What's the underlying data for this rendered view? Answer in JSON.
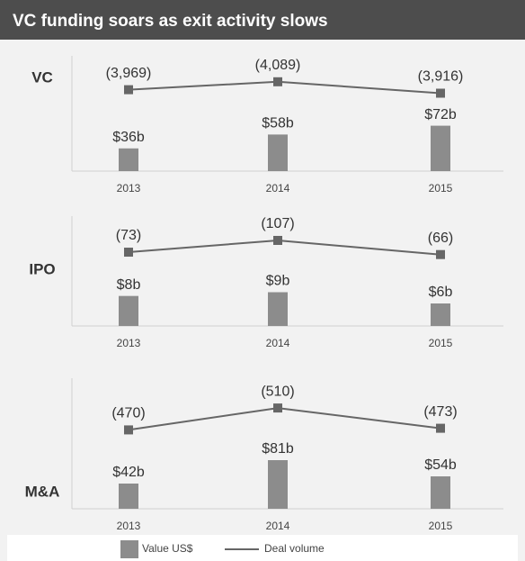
{
  "title": "VC funding soars as exit activity slows",
  "legend": [
    {
      "name": "Value US$",
      "color": "#8c8c8c"
    },
    {
      "name": "Deal volume",
      "color": "#666666"
    }
  ],
  "chart_data": [
    {
      "type": "bar_line",
      "label": "VC",
      "categories": [
        "2013",
        "2014",
        "2015"
      ],
      "bars": {
        "values": [
          36,
          58,
          72
        ],
        "value_labels": [
          "$36b",
          "$58b",
          "$72b"
        ],
        "color": "#8c8c8c"
      },
      "line": {
        "values": [
          3969,
          4089,
          3916
        ],
        "value_labels": [
          "(3,969)",
          "(4,089)",
          "(3,916)"
        ],
        "color": "#666666",
        "axis": "y2"
      },
      "ylim": [
        0,
        100
      ],
      "y2lim": [
        3800,
        4100
      ]
    },
    {
      "type": "bar_line",
      "label": "IPO",
      "categories": [
        "2013",
        "2014",
        "2015"
      ],
      "bars": {
        "values": [
          8,
          9,
          6
        ],
        "value_labels": [
          "$8b",
          "$9b",
          "$6b"
        ],
        "color": "#8c8c8c"
      },
      "line": {
        "values": [
          73,
          107,
          66
        ],
        "value_labels": [
          "(73)",
          "(107)",
          "(66)"
        ],
        "color": "#666666",
        "axis": "y2"
      },
      "ylim": [
        0,
        12
      ],
      "y2lim": [
        0,
        120
      ]
    },
    {
      "type": "bar_line",
      "label": "M&A",
      "categories": [
        "2013",
        "2014",
        "2015"
      ],
      "bars": {
        "values": [
          42,
          81,
          54
        ],
        "value_labels": [
          "$42b",
          "$81b",
          "$54b"
        ],
        "color": "#8c8c8c"
      },
      "line": {
        "values": [
          470,
          510,
          473
        ],
        "value_labels": [
          "(470)",
          "(510)",
          "(473)"
        ],
        "color": "#666666",
        "axis": "y2"
      },
      "ylim": [
        0,
        120
      ],
      "y2lim": [
        400,
        520
      ]
    }
  ]
}
